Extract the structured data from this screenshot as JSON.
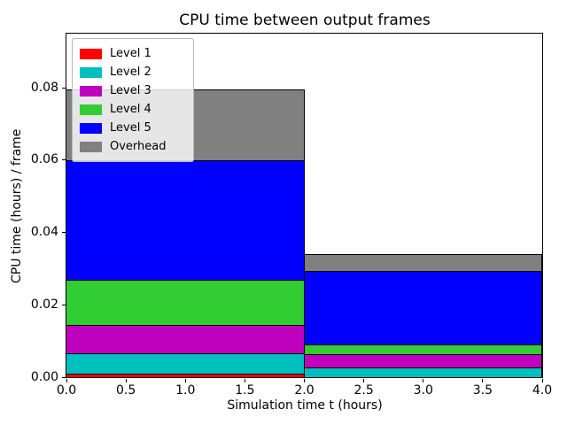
{
  "chart_data": {
    "type": "bar",
    "stacked": true,
    "title": "CPU time between output frames",
    "xlabel": "Simulation time t (hours)",
    "ylabel": "CPU time (hours) / frame",
    "xlim": [
      0.0,
      4.0
    ],
    "ylim": [
      0.0,
      0.095
    ],
    "grid": false,
    "xticks": [
      0.0,
      0.5,
      1.0,
      1.5,
      2.0,
      2.5,
      3.0,
      3.5,
      4.0
    ],
    "xtick_labels": [
      "0.0",
      "0.5",
      "1.0",
      "1.5",
      "2.0",
      "2.5",
      "3.0",
      "3.5",
      "4.0"
    ],
    "yticks": [
      0.0,
      0.02,
      0.04,
      0.06,
      0.08
    ],
    "ytick_labels": [
      "0.00",
      "0.02",
      "0.04",
      "0.06",
      "0.08"
    ],
    "bars": [
      {
        "x_start": 0.0,
        "x_end": 2.0
      },
      {
        "x_start": 2.0,
        "x_end": 4.0
      }
    ],
    "series": [
      {
        "name": "Level 1",
        "color": "#ff0000",
        "values": [
          0.001,
          0.0001
        ]
      },
      {
        "name": "Level 2",
        "color": "#00bfbf",
        "values": [
          0.0055,
          0.0026
        ]
      },
      {
        "name": "Level 3",
        "color": "#bf00bf",
        "values": [
          0.008,
          0.0036
        ]
      },
      {
        "name": "Level 4",
        "color": "#32cd32",
        "values": [
          0.0125,
          0.0028
        ]
      },
      {
        "name": "Level 5",
        "color": "#0000ff",
        "values": [
          0.033,
          0.0203
        ]
      },
      {
        "name": "Overhead",
        "color": "#808080",
        "values": [
          0.0195,
          0.0046
        ]
      }
    ],
    "cumulative_tops": {
      "bar1": [
        0.001,
        0.0065,
        0.0145,
        0.027,
        0.06,
        0.0795
      ],
      "bar2": [
        0.0001,
        0.0027,
        0.0063,
        0.0091,
        0.0294,
        0.034
      ]
    },
    "legend": {
      "position": "upper left",
      "entries": [
        "Level 1",
        "Level 2",
        "Level 3",
        "Level 4",
        "Level 5",
        "Overhead"
      ]
    }
  },
  "colors": {
    "axes_edge": "#000000",
    "background": "#ffffff",
    "legend_border": "#b7b7b7"
  }
}
